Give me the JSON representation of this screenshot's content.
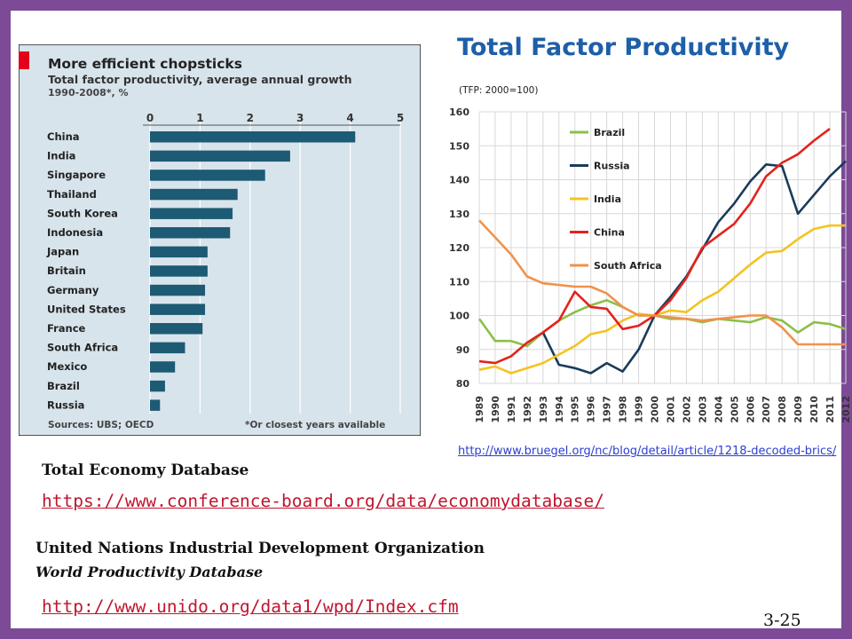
{
  "slide": {
    "title": "Total Factor Productivity",
    "page_number": "3-25",
    "source_link": "http://www.bruegel.org/nc/blog/detail/article/1218-decoded-brics/",
    "ted_title": "Total Economy Database",
    "ted_link": "https://www.conference-board.org/data/economydatabase/",
    "unido_title": "United Nations Industrial Development Organization",
    "unido_subtitle": "World Productivity Database",
    "unido_link": "http://www.unido.org/data1/wpd/Index.cfm",
    "frame_color": "#7d4a97",
    "title_color": "#1d5fa8",
    "link_color": "#c0152e"
  },
  "chart_data": [
    {
      "type": "bar",
      "orientation": "horizontal",
      "title": "More efficient chopsticks",
      "subtitle": "Total factor productivity, average annual growth",
      "subtitle2": "1990-2008*, %",
      "categories": [
        "China",
        "India",
        "Singapore",
        "Thailand",
        "South Korea",
        "Indonesia",
        "Japan",
        "Britain",
        "Germany",
        "United States",
        "France",
        "South Africa",
        "Mexico",
        "Brazil",
        "Russia"
      ],
      "values": [
        4.1,
        2.8,
        2.3,
        1.75,
        1.65,
        1.6,
        1.15,
        1.15,
        1.1,
        1.1,
        1.05,
        0.7,
        0.5,
        0.3,
        0.2
      ],
      "xlim": [
        0,
        5
      ],
      "ticks": [
        "0",
        "1",
        "2",
        "3",
        "4",
        "5"
      ],
      "grid": true,
      "source": "Sources: UBS; OECD",
      "footnote": "*Or closest years available",
      "colors": {
        "background": "#d8e4ec",
        "bar": "#1d5a73",
        "accent": "#e2001a"
      }
    },
    {
      "type": "line",
      "ylabel": "(TFP: 2000=100)",
      "ylim": [
        80,
        160
      ],
      "yticks": [
        "80",
        "90",
        "100",
        "110",
        "120",
        "130",
        "140",
        "150",
        "160"
      ],
      "x": [
        "1989",
        "1990",
        "1991",
        "1992",
        "1993",
        "1994",
        "1995",
        "1996",
        "1997",
        "1998",
        "1999",
        "2000",
        "2001",
        "2002",
        "2003",
        "2004",
        "2005",
        "2006",
        "2007",
        "2008",
        "2009",
        "2010",
        "2011",
        "2012"
      ],
      "grid": true,
      "legend_position": "upper-left",
      "series": [
        {
          "name": "Brazil",
          "color": "#8cbf4a",
          "values": [
            99,
            92.5,
            92.5,
            91,
            95,
            98.5,
            101,
            103,
            104.5,
            102.5,
            100,
            100,
            99,
            99,
            98,
            99,
            98.5,
            98,
            99.5,
            98.5,
            95,
            98,
            97.5,
            96
          ]
        },
        {
          "name": "Russia",
          "color": "#1b3b5a",
          "values": [
            null,
            null,
            null,
            null,
            95,
            85.5,
            84.5,
            83,
            86,
            83.5,
            90,
            100,
            105.5,
            111.5,
            119.5,
            127.5,
            133,
            139.5,
            144.5,
            144,
            130,
            135.5,
            141,
            145.5
          ]
        },
        {
          "name": "India",
          "color": "#f4c321",
          "values": [
            84,
            85,
            83,
            84.5,
            86,
            88.5,
            91,
            94.5,
            95.5,
            98.5,
            100.5,
            100,
            101.5,
            101,
            104.5,
            107,
            111,
            115,
            118.5,
            119,
            122.5,
            125.5,
            126.5,
            126.5
          ]
        },
        {
          "name": "China",
          "color": "#e3231c",
          "values": [
            86.5,
            86,
            88,
            92,
            95,
            98.5,
            107,
            102.5,
            102,
            96,
            97,
            100,
            104.5,
            111,
            120,
            123.5,
            127,
            133,
            141,
            145,
            147.5,
            151.5,
            155,
            null
          ]
        },
        {
          "name": "South Africa",
          "color": "#f0924a",
          "values": [
            128,
            123,
            118,
            111.5,
            109.5,
            109,
            108.5,
            108.5,
            106.5,
            102.5,
            100,
            100,
            99.5,
            99,
            98.5,
            99,
            99.5,
            100,
            100,
            96.5,
            91.5,
            91.5,
            91.5,
            91.5
          ]
        }
      ]
    }
  ]
}
